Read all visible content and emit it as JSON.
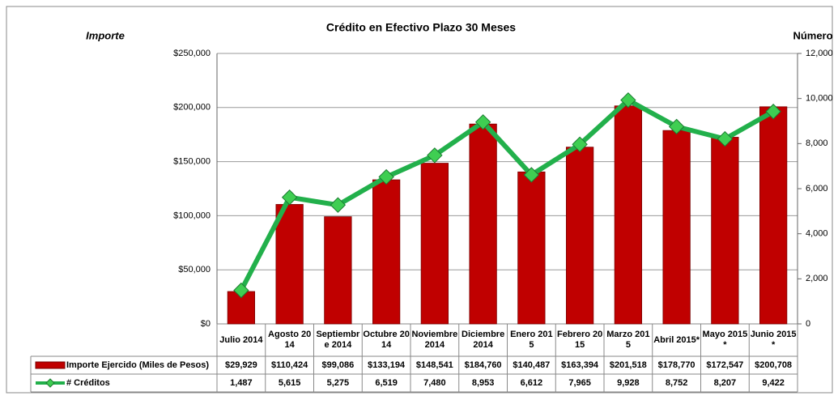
{
  "chart_data": {
    "type": "bar",
    "title": "Crédito en Efectivo Plazo 30 Meses",
    "y_label": "Importe",
    "y2_label": "Número",
    "categories": [
      "Julio 2014",
      "Agosto 2014",
      "Septiembre 2014",
      "Octubre 2014",
      "Noviembre 2014",
      "Diciembre 2014",
      "Enero 2015",
      "Febrero 2015",
      "Marzo 2015",
      "Abril 2015*",
      "Mayo 2015*",
      "Junio 2015*"
    ],
    "series": [
      {
        "name": "Importe Ejercido (Miles de Pesos)",
        "color": "#c00000",
        "type": "bar",
        "values": [
          29929,
          110424,
          99086,
          133194,
          148541,
          184760,
          140487,
          163394,
          201518,
          178770,
          172547,
          200708
        ],
        "value_labels": [
          "$29,929",
          "$110,424",
          "$99,086",
          "$133,194",
          "$148,541",
          "$184,760",
          "$140,487",
          "$163,394",
          "$201,518",
          "$178,770",
          "$172,547",
          "$200,708"
        ]
      },
      {
        "name": "# Créditos",
        "color": "#22b04b",
        "type": "line",
        "axis": "y2",
        "values": [
          1487,
          5615,
          5275,
          6519,
          7480,
          8953,
          6612,
          7965,
          9928,
          8752,
          8207,
          9422
        ],
        "value_labels": [
          "1,487",
          "5,615",
          "5,275",
          "6,519",
          "7,480",
          "8,953",
          "6,612",
          "7,965",
          "9,928",
          "8,752",
          "8,207",
          "9,422"
        ]
      }
    ],
    "ylim": [
      0,
      250000
    ],
    "yticks": [
      {
        "value": 0,
        "label": "$0"
      },
      {
        "value": 50000,
        "label": "$50,000"
      },
      {
        "value": 100000,
        "label": "$100,000"
      },
      {
        "value": 150000,
        "label": "$150,000"
      },
      {
        "value": 200000,
        "label": "$200,000"
      },
      {
        "value": 250000,
        "label": "$250,000"
      }
    ],
    "y2lim": [
      0,
      12000
    ],
    "y2ticks": [
      0,
      {
        "value": 2000,
        "label": "2,000"
      },
      {
        "value": 4000,
        "label": "4,000"
      },
      {
        "value": 6000,
        "label": "6,000"
      },
      {
        "value": 8000,
        "label": "8,000"
      },
      {
        "value": 10000,
        "label": "10,000"
      },
      {
        "value": 12000,
        "label": "12,000"
      }
    ],
    "grid": true
  }
}
